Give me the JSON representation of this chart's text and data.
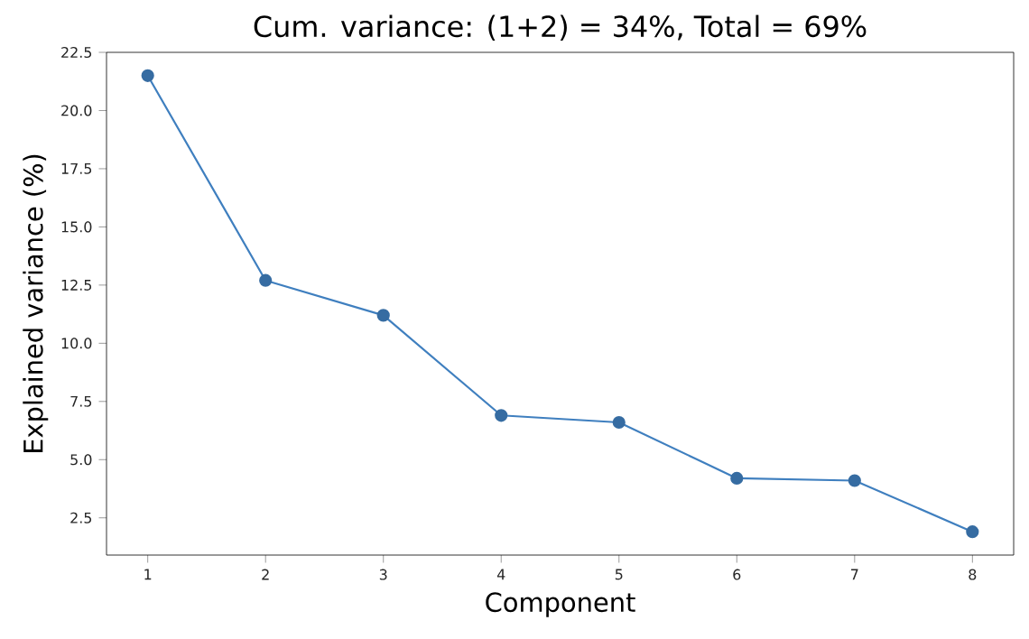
{
  "chart_data": {
    "type": "line",
    "title": "Cum. variance: (1+2) = 34%, Total = 69%",
    "xlabel": "Component",
    "ylabel": "Explained variance (%)",
    "x": [
      1,
      2,
      3,
      4,
      5,
      6,
      7,
      8
    ],
    "series": [
      {
        "color": "#3f7fbf",
        "values": [
          21.5,
          12.7,
          11.2,
          6.9,
          6.6,
          4.2,
          4.1,
          1.9
        ]
      }
    ],
    "xlim": [
      0.65,
      8.35
    ],
    "ylim": [
      0.9,
      22.5
    ],
    "xticks": [
      1,
      2,
      3,
      4,
      5,
      6,
      7,
      8
    ],
    "yticks": [
      {
        "value": 2.5,
        "label": "2.5"
      },
      {
        "value": 5,
        "label": "5.0"
      },
      {
        "value": 7.5,
        "label": "7.5"
      },
      {
        "value": 10,
        "label": "10.0"
      },
      {
        "value": 12.5,
        "label": "12.5"
      },
      {
        "value": 15,
        "label": "15.0"
      },
      {
        "value": 17.5,
        "label": "17.5"
      },
      {
        "value": 20,
        "label": "20.0"
      },
      {
        "value": 22.5,
        "label": "22.5"
      }
    ],
    "grid": false,
    "marker": "circle",
    "line_style": "solid"
  }
}
